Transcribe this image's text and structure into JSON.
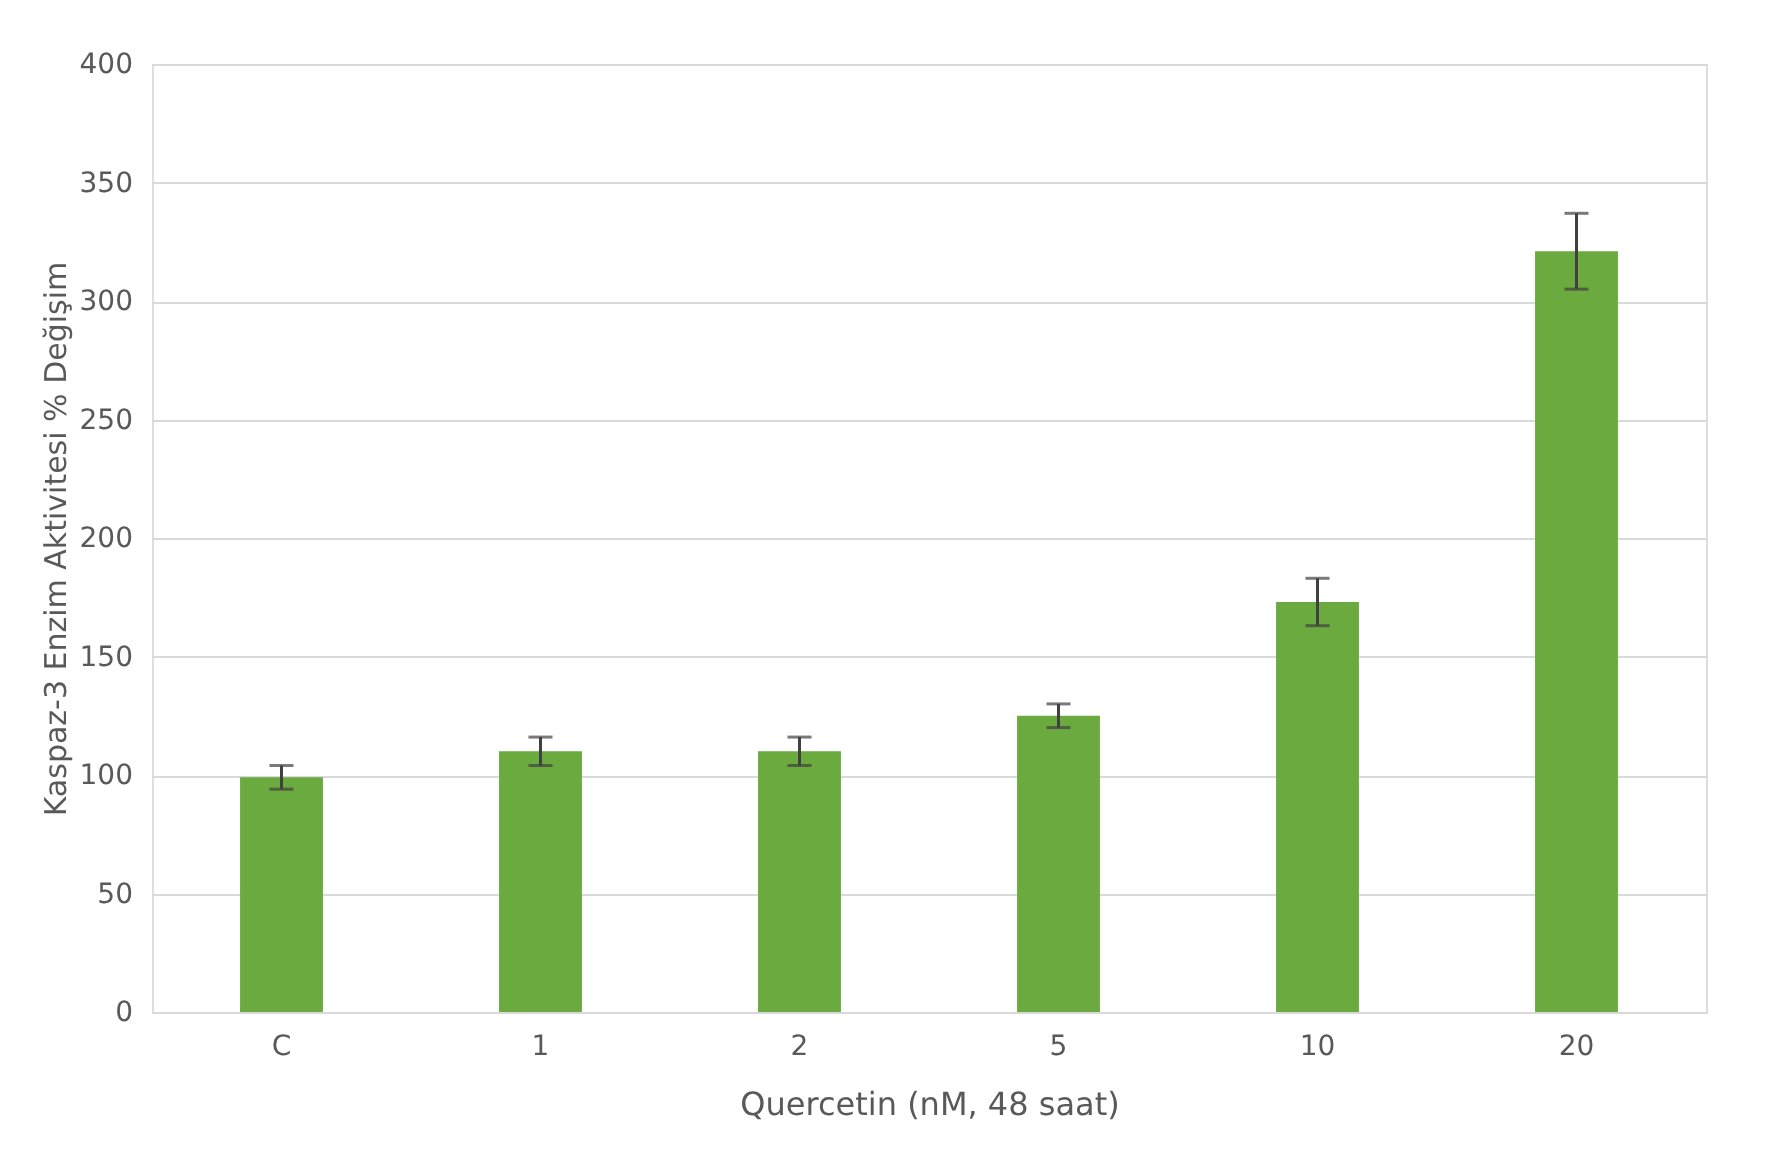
{
  "chart_data": {
    "type": "bar",
    "xlabel": "Quercetin (nM, 48 saat)",
    "ylabel": "Kaspaz-3 Enzim Aktivitesi % Değişim",
    "categories": [
      "C",
      "1",
      "2",
      "5",
      "10",
      "20"
    ],
    "values": [
      99,
      110,
      110,
      125,
      173,
      321
    ],
    "errors": [
      5,
      6,
      6,
      5,
      10,
      16
    ],
    "color": "#6aaa3e",
    "ylim": [
      0,
      400
    ],
    "yticks": [
      0,
      50,
      100,
      150,
      200,
      250,
      300,
      350,
      400
    ],
    "grid": "y"
  }
}
